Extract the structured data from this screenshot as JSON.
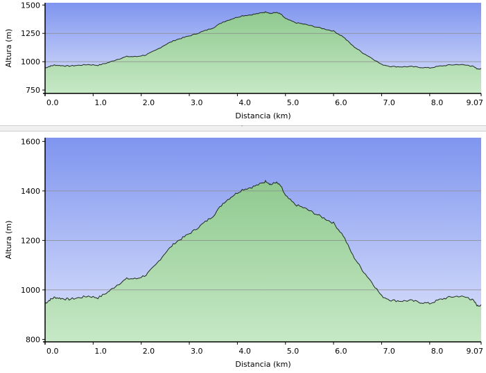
{
  "colors": {
    "sky_top": "#7f95ef",
    "sky_bottom": "#dde3fb",
    "fill_top": "#8fc98f",
    "fill_bottom": "#c6e8c6",
    "profile_line": "#1e2a1e",
    "gridline": "#8a8a8a"
  },
  "divider": {
    "handle_glyph": "ˆ"
  },
  "chart_data": [
    {
      "type": "area",
      "title": "",
      "xlabel": "Distancia   (km)",
      "ylabel": "Altura (m)",
      "xlim": [
        0,
        9.07
      ],
      "ylim": [
        720,
        1520
      ],
      "xticks": [
        0,
        1,
        2,
        3,
        4,
        5,
        6,
        7,
        8,
        9.07
      ],
      "xtick_labels": [
        "0.0",
        "1.0",
        "2.0",
        "3.0",
        "4.0",
        "5.0",
        "6.0",
        "7.0",
        "8.0",
        "9.07"
      ],
      "yticks": [
        750,
        1000,
        1250,
        1500
      ],
      "ytick_labels": [
        "750",
        "1000",
        "1250",
        "1500"
      ],
      "gridlines_y": [
        1000,
        1250
      ],
      "series": [
        {
          "x": [
            0,
            0.1,
            0.2,
            0.35,
            0.5,
            0.7,
            0.9,
            1.1,
            1.3,
            1.5,
            1.7,
            1.9,
            2.1,
            2.3,
            2.5,
            2.7,
            2.9,
            3.1,
            3.3,
            3.5,
            3.7,
            3.9,
            4.1,
            4.3,
            4.5,
            4.6,
            4.7,
            4.8,
            4.9,
            5.0,
            5.2,
            5.4,
            5.6,
            5.8,
            6.0,
            6.2,
            6.4,
            6.6,
            6.8,
            7.0,
            7.2,
            7.4,
            7.6,
            7.8,
            8.0,
            8.2,
            8.4,
            8.6,
            8.8,
            8.9,
            9.0,
            9.07
          ],
          "y": [
            945,
            960,
            970,
            965,
            962,
            968,
            975,
            968,
            990,
            1020,
            1045,
            1045,
            1060,
            1100,
            1150,
            1190,
            1215,
            1240,
            1270,
            1300,
            1350,
            1380,
            1405,
            1415,
            1430,
            1440,
            1425,
            1435,
            1420,
            1380,
            1345,
            1330,
            1310,
            1290,
            1270,
            1220,
            1140,
            1080,
            1030,
            975,
            958,
            955,
            957,
            950,
            945,
            960,
            970,
            975,
            968,
            958,
            935,
            940
          ]
        }
      ]
    },
    {
      "type": "area",
      "title": "",
      "xlabel": "Distancia   (km)",
      "ylabel": "Altura (m)",
      "xlim": [
        0,
        9.07
      ],
      "ylim": [
        790,
        1615
      ],
      "xticks": [
        0,
        1,
        2,
        3,
        4,
        5,
        6,
        7,
        8,
        9.07
      ],
      "xtick_labels": [
        "0.0",
        "1.0",
        "2.0",
        "3.0",
        "4.0",
        "5.0",
        "6.0",
        "7.0",
        "8.0",
        "9.07"
      ],
      "yticks": [
        800,
        1000,
        1200,
        1400,
        1600
      ],
      "ytick_labels": [
        "800",
        "1000",
        "1200",
        "1400",
        "1600"
      ],
      "gridlines_y": [
        1000,
        1200,
        1400
      ],
      "series": [
        {
          "x": [
            0,
            0.1,
            0.2,
            0.35,
            0.5,
            0.7,
            0.9,
            1.1,
            1.3,
            1.5,
            1.7,
            1.9,
            2.1,
            2.3,
            2.5,
            2.7,
            2.9,
            3.1,
            3.3,
            3.5,
            3.7,
            3.9,
            4.1,
            4.3,
            4.5,
            4.6,
            4.7,
            4.8,
            4.9,
            5.0,
            5.2,
            5.4,
            5.6,
            5.8,
            6.0,
            6.2,
            6.4,
            6.6,
            6.8,
            7.0,
            7.2,
            7.4,
            7.6,
            7.8,
            8.0,
            8.2,
            8.4,
            8.6,
            8.8,
            8.9,
            9.0,
            9.07
          ],
          "y": [
            945,
            960,
            970,
            965,
            962,
            968,
            975,
            968,
            990,
            1020,
            1045,
            1045,
            1060,
            1100,
            1150,
            1190,
            1215,
            1240,
            1270,
            1300,
            1350,
            1380,
            1405,
            1415,
            1430,
            1440,
            1425,
            1435,
            1420,
            1380,
            1345,
            1330,
            1310,
            1290,
            1270,
            1220,
            1140,
            1080,
            1030,
            975,
            958,
            955,
            957,
            950,
            945,
            960,
            970,
            975,
            968,
            958,
            935,
            940
          ]
        }
      ]
    }
  ]
}
